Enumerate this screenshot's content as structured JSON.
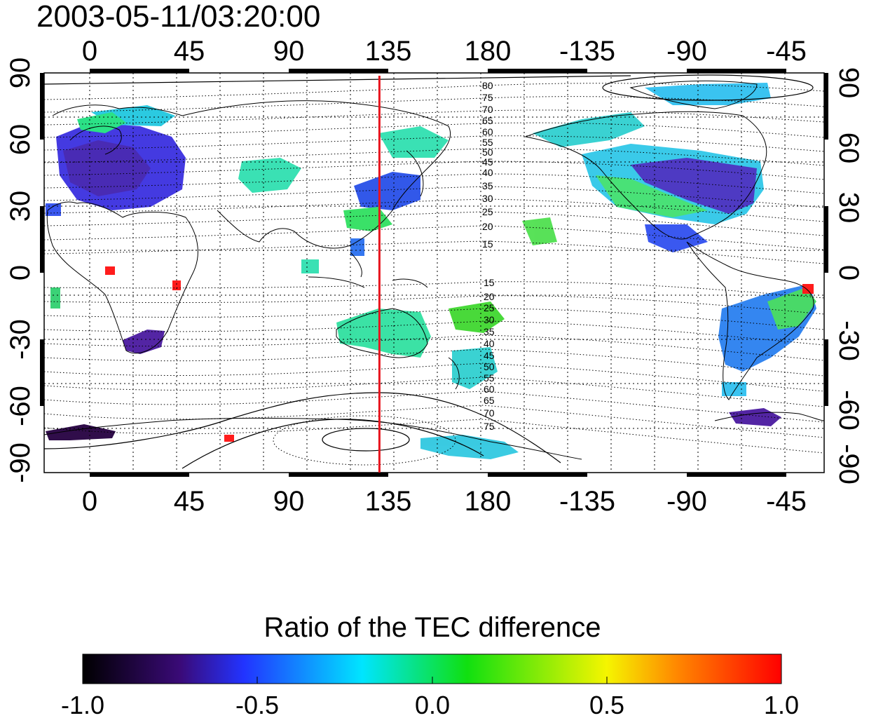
{
  "timestamp": "2003-05-11/03:20:00",
  "lon_labels": [
    "0",
    "45",
    "90",
    "135",
    "180",
    "-135",
    "-90",
    "-45"
  ],
  "lat_labels": [
    "90",
    "60",
    "30",
    "0",
    "-30",
    "-60",
    "-90"
  ],
  "contour_labels_north": [
    "80",
    "75",
    "70",
    "65",
    "60",
    "55",
    "50",
    "45",
    "40",
    "35",
    "30",
    "25",
    "20",
    "15"
  ],
  "contour_labels_south": [
    "15",
    "20",
    "25",
    "30",
    "35",
    "40",
    "45",
    "50",
    "55",
    "60",
    "65",
    "70",
    "75"
  ],
  "meridian_marker_lon": 131,
  "marker_color": "#e8141e",
  "colorbar": {
    "title": "Ratio of the TEC difference",
    "min": -1.0,
    "max": 1.0,
    "tick_labels": [
      "-1.0",
      "-0.5",
      "0.0",
      "0.5",
      "1.0"
    ],
    "stops": [
      "#000000",
      "#3a0a78",
      "#2233ff",
      "#00e5ff",
      "#10e010",
      "#f5f500",
      "#ff8800",
      "#ff0000"
    ]
  }
}
